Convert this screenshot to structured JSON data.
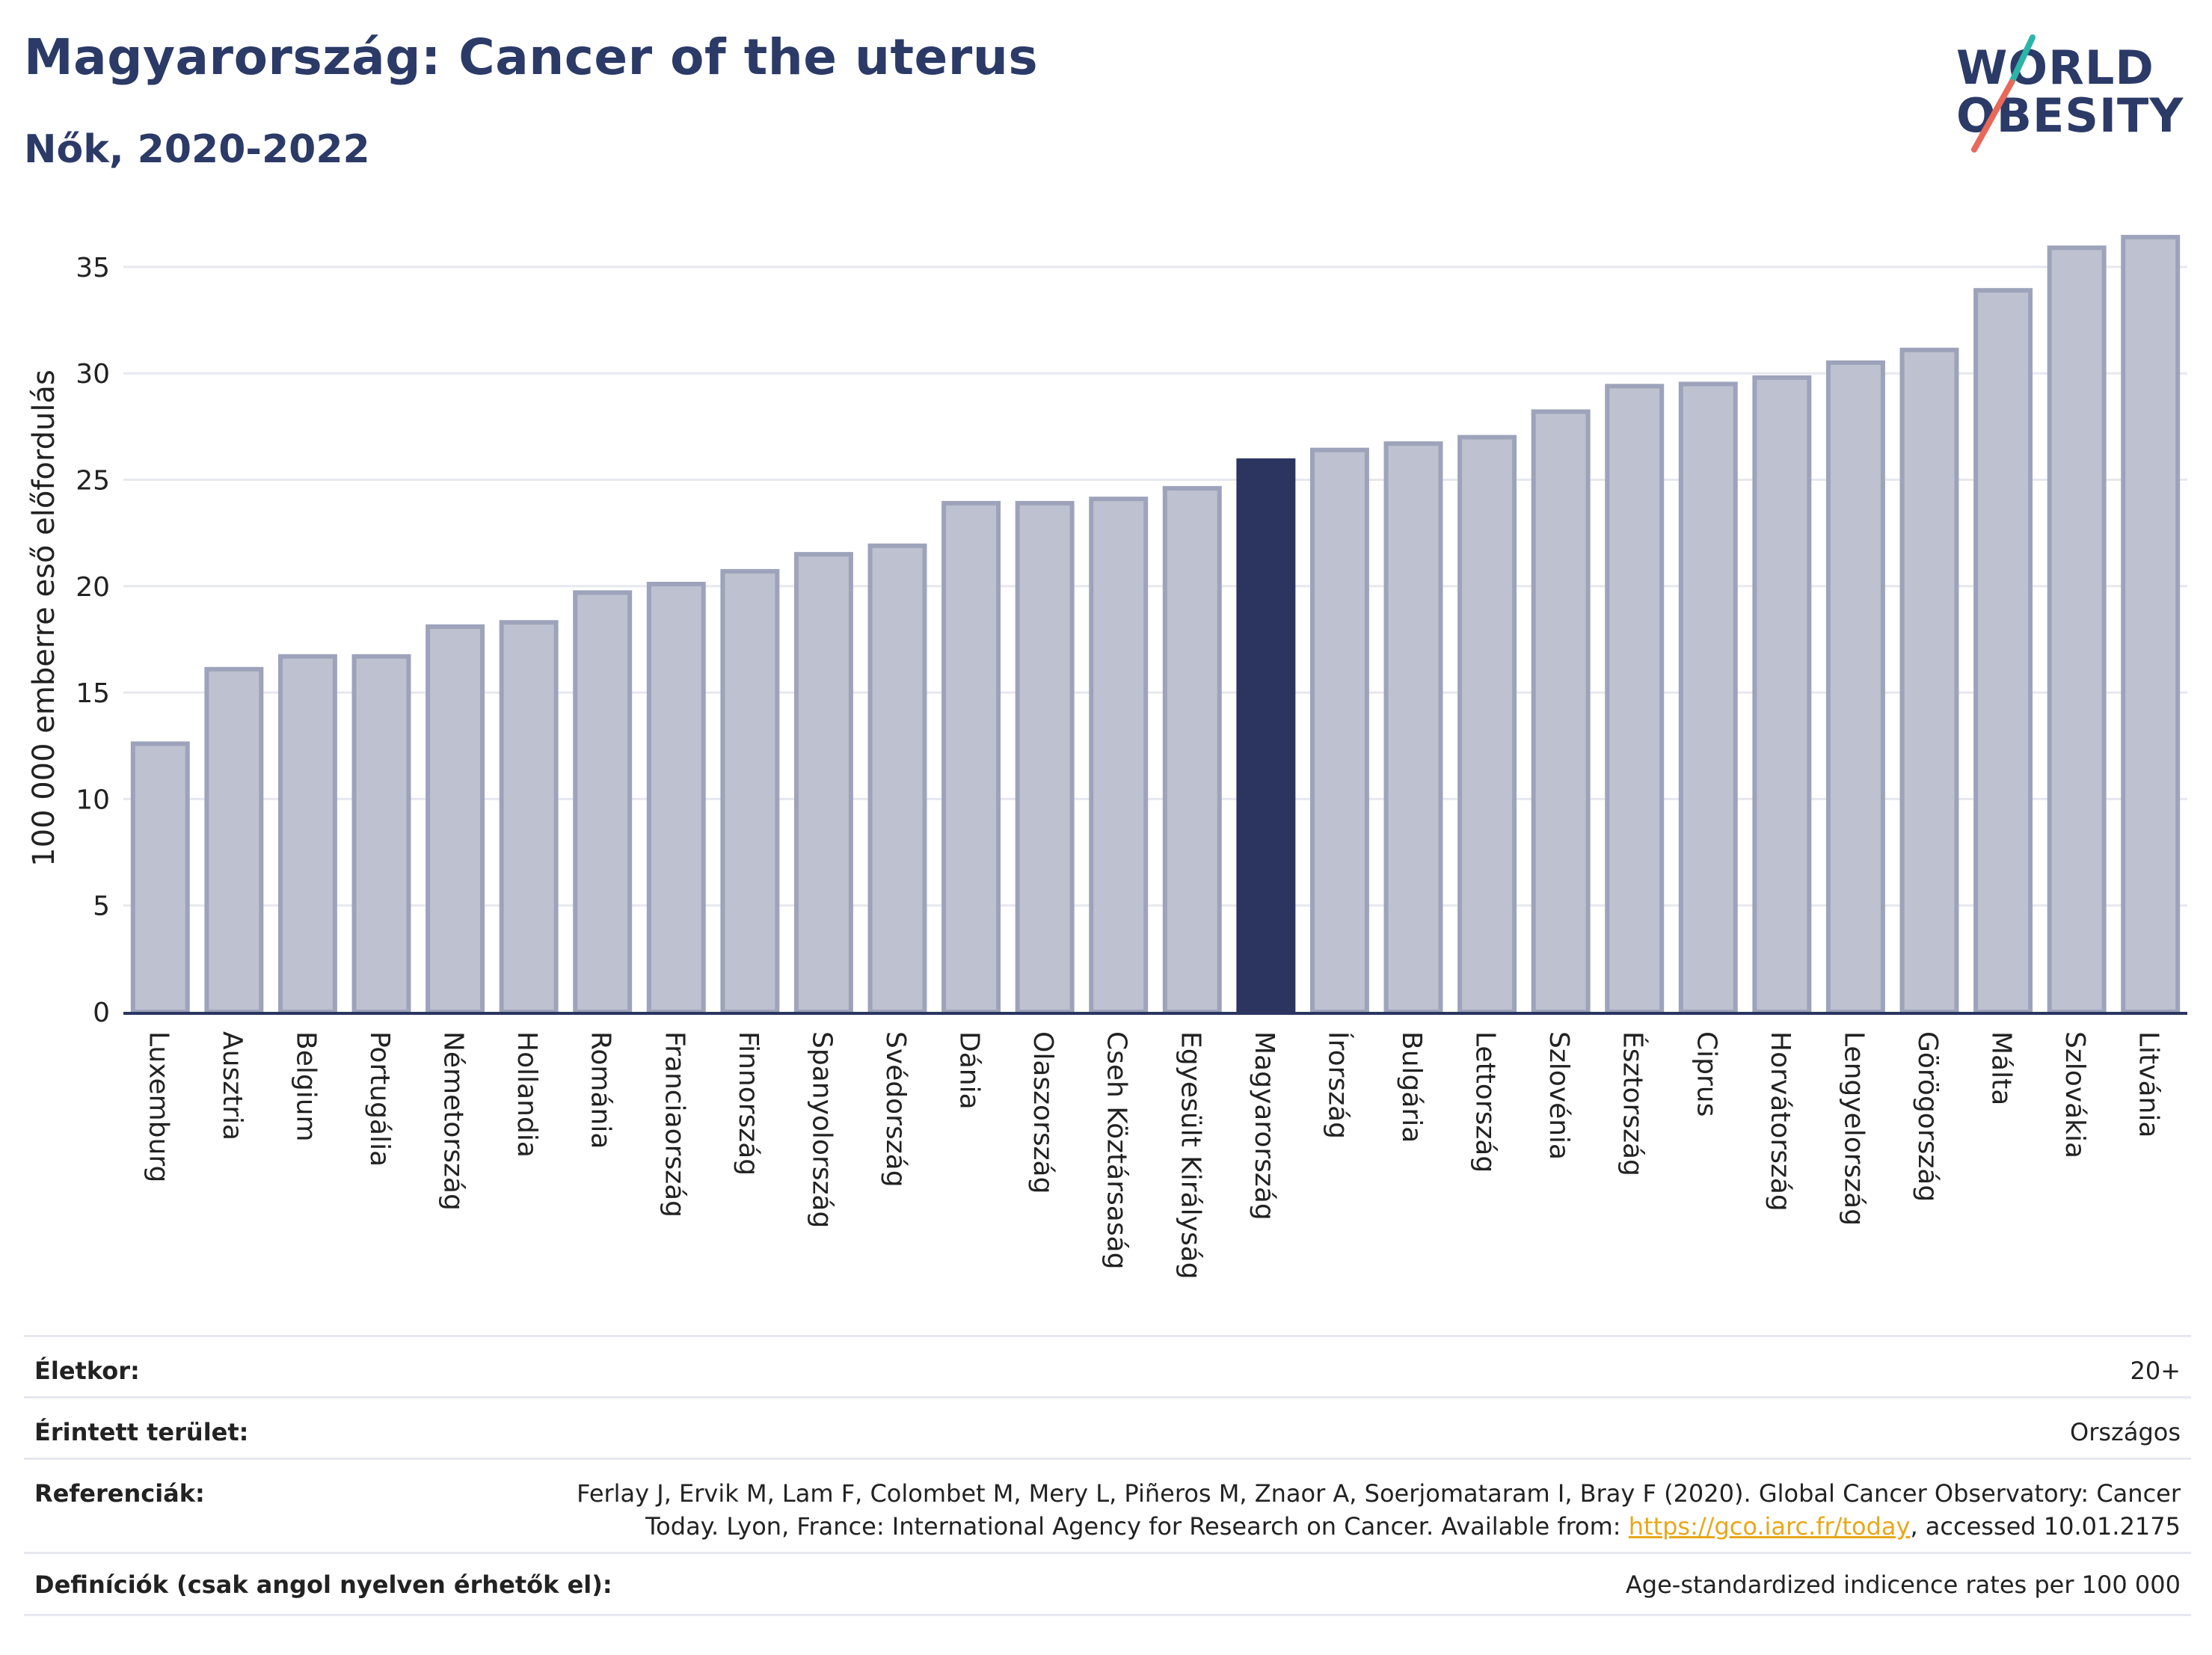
{
  "header": {
    "title": "Magyarország: Cancer of the uterus",
    "subtitle": "Nők, 2020-2022"
  },
  "logo": {
    "line1": "WORLD",
    "line2": "OBESITY"
  },
  "colors": {
    "bar": "#bec1cf",
    "bar_border": "#9da3ba",
    "highlight": "#2b3560",
    "grid": "#e6e8ef",
    "axis": "#2b3560"
  },
  "chart_data": {
    "type": "bar",
    "ylabel": "100 000 emberre eső előfordulás",
    "xlabel": "",
    "ylim": [
      0,
      37
    ],
    "yticks": [
      0,
      5,
      10,
      15,
      20,
      25,
      30,
      35
    ],
    "grid": true,
    "highlight": "Magyarország",
    "categories": [
      "Luxemburg",
      "Ausztria",
      "Belgium",
      "Portugália",
      "Németország",
      "Hollandia",
      "Románia",
      "Franciaország",
      "Finnország",
      "Spanyolország",
      "Svédország",
      "Dánia",
      "Olaszország",
      "Cseh Köztársaság",
      "Egyesült Királyság",
      "Magyarország",
      "Írország",
      "Bulgária",
      "Lettország",
      "Szlovénia",
      "Észtország",
      "Ciprus",
      "Horvátország",
      "Lengyelország",
      "Görögország",
      "Málta",
      "Szlovákia",
      "Litvánia"
    ],
    "values": [
      12.6,
      16.1,
      16.7,
      16.7,
      18.1,
      18.3,
      19.7,
      20.1,
      20.7,
      21.5,
      21.9,
      23.9,
      23.9,
      24.1,
      24.6,
      25.9,
      26.4,
      26.7,
      27.0,
      28.2,
      29.4,
      29.5,
      29.8,
      30.5,
      31.1,
      33.9,
      35.9,
      36.4
    ]
  },
  "info": {
    "age_label": "Életkor:",
    "age_value": "20+",
    "area_label": "Érintett terület:",
    "area_value": "Országos",
    "ref_label": "Referenciák:",
    "ref_line1": "Ferlay J, Ervik M, Lam F, Colombet M, Mery L, Piñeros M, Znaor A, Soerjomataram I, Bray F (2020). Global Cancer Observatory: Cancer",
    "ref_line2_pre": "Today. Lyon, France: International Agency for Research on Cancer. Available from: ",
    "ref_link": "https://gco.iarc.fr/today",
    "ref_line2_post": ", accessed 10.01.2175",
    "def_label": "Definíciók (csak angol nyelven érhetők el):",
    "def_value": "Age-standardized indicence rates per 100 000"
  }
}
